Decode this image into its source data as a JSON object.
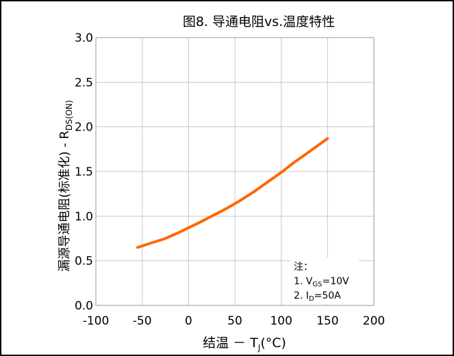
{
  "chart_data": {
    "type": "line",
    "title": "图8. 导通电阻vs.温度特性",
    "xlabel": {
      "main": "结温 － T",
      "sub": "J",
      "suffix": "(°C)"
    },
    "ylabel": {
      "main": "漏源导通电阻(标准化) - R",
      "sub": "DS(ON)"
    },
    "xlim": [
      -100,
      200
    ],
    "ylim": [
      0.0,
      3.0
    ],
    "xticks": [
      -100,
      -50,
      0,
      50,
      100,
      150,
      200
    ],
    "xtick_labels": [
      "-100",
      "-50",
      "0",
      "50",
      "100",
      "150",
      "200"
    ],
    "yticks": [
      0.0,
      0.5,
      1.0,
      1.5,
      2.0,
      2.5,
      3.0
    ],
    "ytick_labels": [
      "0.0",
      "0.5",
      "1.0",
      "1.5",
      "2.0",
      "2.5",
      "3.0"
    ],
    "grid": true,
    "series": [
      {
        "color": "#ff6600",
        "x": [
          -55,
          -40,
          -25,
          -10,
          0,
          10,
          25,
          40,
          55,
          70,
          85,
          100,
          115,
          130,
          150
        ],
        "y": [
          0.65,
          0.7,
          0.75,
          0.82,
          0.87,
          0.92,
          1.0,
          1.08,
          1.17,
          1.27,
          1.38,
          1.49,
          1.61,
          1.72,
          1.87
        ]
      }
    ],
    "note": {
      "title": "注：",
      "line1": {
        "prefix": "1. V",
        "sub": "GS",
        "suffix": "=10V"
      },
      "line2": {
        "prefix": "2. I",
        "sub": "D",
        "suffix": "=50A"
      }
    }
  }
}
